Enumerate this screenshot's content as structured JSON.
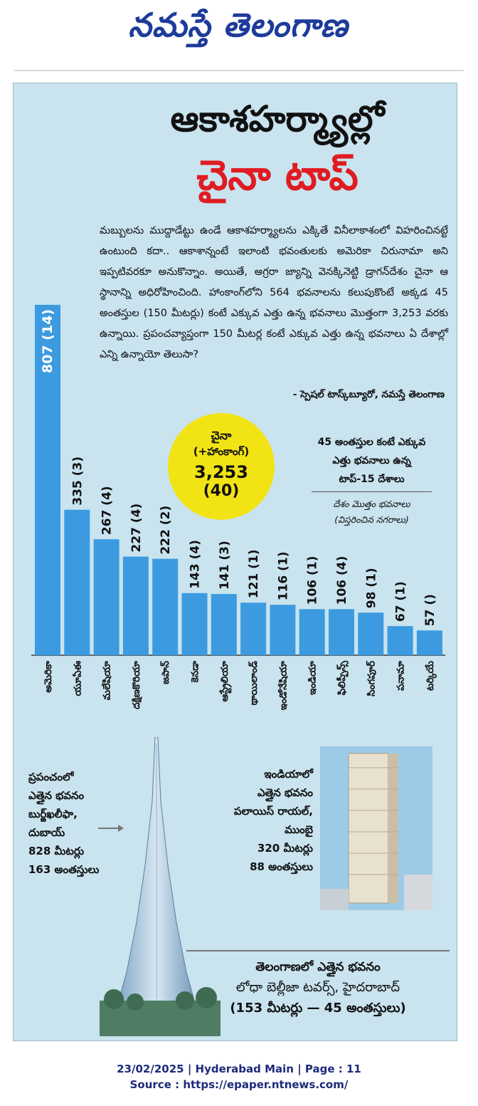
{
  "masthead": {
    "logo_text": "నమస్తే తెలంగాణ"
  },
  "headline": {
    "line1": "ఆకాశహర్మ్యాల్లో",
    "line2": "చైనా టాప్"
  },
  "intro": {
    "text": "మబ్బులను ముద్దాడేట్టు ఉండే ఆకాశహర్మ్యాలను ఎక్కితే వినీలాకాశంలో విహరించినట్టే ఉంటుంది కదా.. ఆకాశాన్నంటే ఇలాంటి భవంతులకు అమెరికా చిరునామా అని ఇప్పటివరకూ అనుకొన్నాం. అయితే, అగ్రరా జ్యాన్ని వెనక్కినెట్టి డ్రాగన్‌దేశం చైనా ఆ స్థానాన్ని అధిరోహించింది. హాంకాంగ్‌లోని 564 భవనాలను కలుపుకొంటే అక్కడ 45 అంతస్తుల (150 మీటర్లు) కంటే ఎక్కువ ఎత్తు ఉన్న భవనాలు మొత్తంగా 3,253 వరకు ఉన్నాయి. ప్రపంచవ్యాప్తంగా 150 మీటర్ల కంటే ఎక్కువ ఎత్తు ఉన్న భవనాలు ఏ దేశాల్లో ఎన్ని ఉన్నాయో తెలుసా?",
    "byline": "- స్పెషల్ టాస్క్‌బ్యూరో, నమస్తే తెలంగాణ"
  },
  "badge": {
    "line1": "చైనా",
    "line2": "(+హాంకాంగ్)",
    "value": "3,253",
    "cities": "(40)"
  },
  "legend": {
    "line1": "45 అంతస్తుల కంటే ఎక్కువ",
    "line2": "ఎత్తు భవనాలు ఉన్న",
    "line3": "టాప్-15 దేశాలు",
    "sub1": "దేశం మొత్తం భవనాలు",
    "sub2": "(విస్తరించిన నగరాలు)"
  },
  "chart_data": {
    "type": "bar",
    "title": "45 అంతస్తుల కంటే ఎక్కువ ఎత్తు భవనాలు ఉన్న టాప్-15 దేశాలు",
    "categories": [
      "అమెరికా",
      "యూఏఈ",
      "మలేషియా",
      "దక్షిణకొరియా",
      "జపాన్",
      "కెనడా",
      "ఆస్ట్రేలియా",
      "థాయిలాండ్",
      "ఇండోనేషియా",
      "ఇండియా",
      "ఫిలిప్పీన్స్",
      "సింగపూర్",
      "పనామా",
      "టర్కియే"
    ],
    "values": [
      807,
      335,
      267,
      227,
      222,
      143,
      141,
      121,
      116,
      106,
      106,
      98,
      67,
      57
    ],
    "labels": [
      "807 (14)",
      "335 (3)",
      "267 (4)",
      "227 (4)",
      "222 (2)",
      "143 (4)",
      "141 (3)",
      "121 (1)",
      "116 (1)",
      "106 (1)",
      "106 (4)",
      "98 (1)",
      "67 (1)",
      "57 ()"
    ],
    "highlight": {
      "name": "చైనా (+హాంకాంగ్)",
      "value": 3253,
      "cities": 40
    },
    "ylim": [
      0,
      807
    ],
    "grid": false,
    "bar_color": "#3c9be0"
  },
  "world_tallest": {
    "line1": "ప్రపంచంలో",
    "line2": "ఎత్తైన భవనం",
    "line3": "బుర్జ్‌ఖలీఫా,",
    "line4": "దుబాయ్",
    "line5": "828 మీటర్లు",
    "line6": "163 అంతస్తులు"
  },
  "india_tallest": {
    "line1": "ఇండియాలో",
    "line2": "ఎత్తైన భవనం",
    "line3": "పలాయిస్ రాయల్,",
    "line4": "ముంబై",
    "line5": "320 మీటర్లు",
    "line6": "88 అంతస్తులు"
  },
  "telangana_tallest": {
    "line1": "తెలంగాణలో ఎత్తైన భవనం",
    "line2": "లోధా బెల్లీజా టవర్స్, హైదరాబాద్",
    "line3": "(153 మీటర్లు — 45 అంతస్తులు)"
  },
  "footer": {
    "line1": "23/02/2025 | Hyderabad Main | Page : 11",
    "line2": "Source : https://epaper.ntnews.com/"
  },
  "colors": {
    "panel": "#c9e3ef",
    "bar": "#3c9be0",
    "badge": "#f2e315",
    "headline_red": "#e11b22",
    "logo_blue": "#1d3b9a"
  }
}
